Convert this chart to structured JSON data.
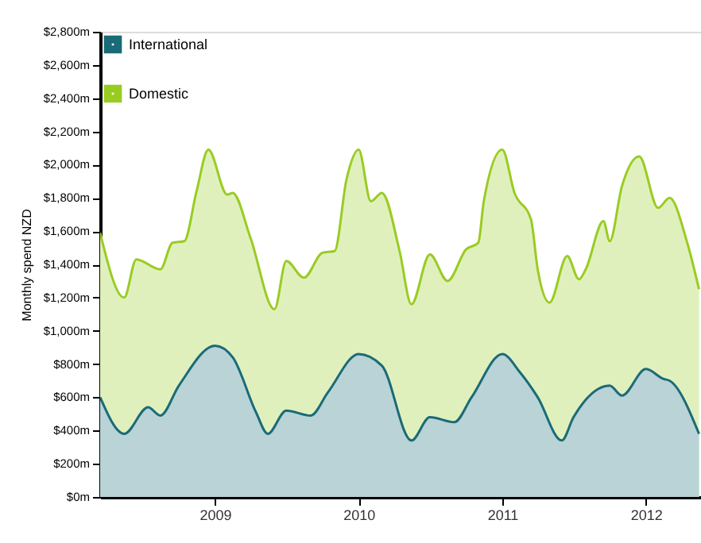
{
  "chart_data": {
    "type": "area",
    "ylabel": "Monthly spend NZD",
    "legend": "top left",
    "grid": false,
    "xlim": [
      "2008-03-15",
      "2012-05-20"
    ],
    "xticks": [
      "2009",
      "2010",
      "2011",
      "2012"
    ],
    "ylim": [
      0,
      2800
    ],
    "yticks": [
      {
        "value": 0,
        "label": "$0m"
      },
      {
        "value": 200,
        "label": "$200m"
      },
      {
        "value": 400,
        "label": "$400m"
      },
      {
        "value": 600,
        "label": "$600m"
      },
      {
        "value": 800,
        "label": "$800m"
      },
      {
        "value": 1000,
        "label": "$1,000m"
      },
      {
        "value": 1200,
        "label": "$1,200m"
      },
      {
        "value": 1400,
        "label": "$1,400m"
      },
      {
        "value": 1600,
        "label": "$1,600m"
      },
      {
        "value": 1800,
        "label": "$1,800m"
      },
      {
        "value": 2000,
        "label": "$2,000m"
      },
      {
        "value": 2200,
        "label": "$2,200m"
      },
      {
        "value": 2400,
        "label": "$2,400m"
      },
      {
        "value": 2600,
        "label": "$2,600m"
      },
      {
        "value": 2800,
        "label": "$2,800m"
      }
    ],
    "series": [
      {
        "name": "International",
        "color": "#1a6b78",
        "x": [
          "2008-03-15",
          "2008-05-15",
          "2008-07-15",
          "2008-08-15",
          "2008-10-01",
          "2009-01-01",
          "2009-02-15",
          "2009-04-15",
          "2009-05-15",
          "2009-07-01",
          "2009-09-01",
          "2009-10-15",
          "2010-01-01",
          "2010-03-01",
          "2010-05-15",
          "2010-07-01",
          "2010-09-01",
          "2010-10-15",
          "2011-01-01",
          "2011-02-15",
          "2011-04-01",
          "2011-06-01",
          "2011-07-01",
          "2011-10-01",
          "2011-11-01",
          "2012-01-01",
          "2012-02-15",
          "2012-03-01",
          "2012-05-15"
        ],
        "values": [
          600,
          380,
          540,
          490,
          670,
          910,
          840,
          510,
          380,
          520,
          490,
          630,
          860,
          790,
          340,
          480,
          450,
          600,
          860,
          750,
          600,
          340,
          480,
          670,
          610,
          770,
          710,
          700,
          380
        ]
      },
      {
        "name": "Domestic",
        "color": "#99cc22",
        "x": [
          "2008-03-15",
          "2008-05-15",
          "2008-06-15",
          "2008-08-15",
          "2008-09-15",
          "2008-10-15",
          "2008-11-15",
          "2008-12-15",
          "2009-02-01",
          "2009-02-15",
          "2009-04-01",
          "2009-06-01",
          "2009-07-01",
          "2009-08-15",
          "2009-10-01",
          "2009-11-01",
          "2009-12-01",
          "2010-01-01",
          "2010-02-01",
          "2010-03-01",
          "2010-04-15",
          "2010-05-15",
          "2010-07-01",
          "2010-08-15",
          "2010-10-01",
          "2010-11-01",
          "2010-11-15",
          "2011-01-01",
          "2011-02-01",
          "2011-03-15",
          "2011-04-01",
          "2011-05-01",
          "2011-06-15",
          "2011-07-15",
          "2011-08-01",
          "2011-09-15",
          "2011-10-01",
          "2011-11-01",
          "2011-12-15",
          "2012-02-01",
          "2012-03-01",
          "2012-04-15",
          "2012-05-15"
        ],
        "values": [
          1590,
          1200,
          1430,
          1370,
          1530,
          1540,
          1840,
          2090,
          1820,
          1830,
          1560,
          1130,
          1420,
          1320,
          1470,
          1480,
          1910,
          2090,
          1780,
          1830,
          1480,
          1160,
          1460,
          1300,
          1490,
          1530,
          1780,
          2090,
          1830,
          1670,
          1370,
          1170,
          1450,
          1310,
          1370,
          1660,
          1540,
          1870,
          2050,
          1740,
          1800,
          1530,
          1250
        ]
      }
    ]
  }
}
